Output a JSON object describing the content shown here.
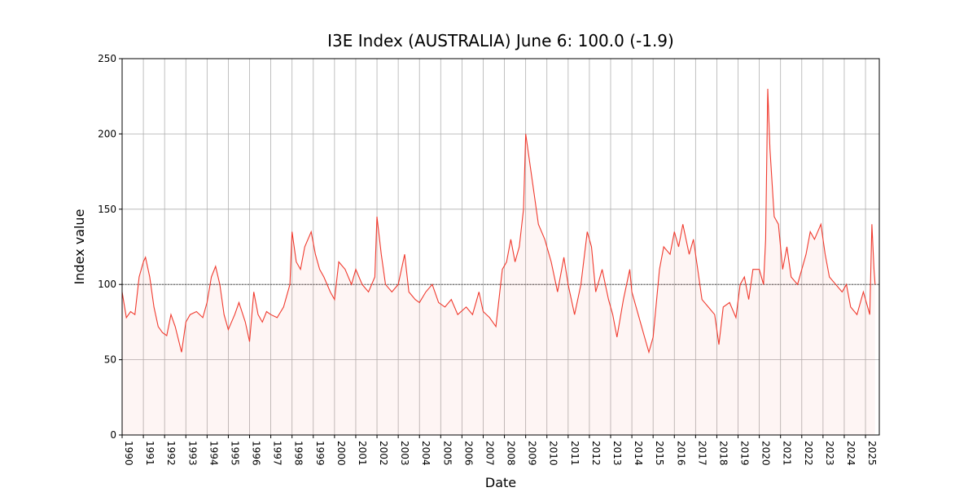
{
  "chart_data": {
    "type": "line",
    "title": "I3E Index (AUSTRALIA) June 6: 100.0 (-1.9)",
    "x_label": "Date",
    "y_label": "Index value",
    "xlim": [
      1990,
      2025.65
    ],
    "ylim": [
      0,
      250
    ],
    "xticks": [
      1990,
      1991,
      1992,
      1993,
      1994,
      1995,
      1996,
      1997,
      1998,
      1999,
      2000,
      2001,
      2002,
      2003,
      2004,
      2005,
      2006,
      2007,
      2008,
      2009,
      2010,
      2011,
      2012,
      2013,
      2014,
      2015,
      2016,
      2017,
      2018,
      2019,
      2020,
      2021,
      2022,
      2023,
      2024,
      2025
    ],
    "yticks": [
      0,
      50,
      100,
      150,
      200,
      250
    ],
    "grid": true,
    "reference": 100,
    "series": [
      {
        "color": "#f03a2e",
        "x": [
          1990.0,
          1990.2,
          1990.4,
          1990.6,
          1990.8,
          1991.0,
          1991.1,
          1991.3,
          1991.5,
          1991.7,
          1991.9,
          1992.1,
          1992.3,
          1992.5,
          1992.8,
          1993.0,
          1993.2,
          1993.5,
          1993.8,
          1994.0,
          1994.2,
          1994.4,
          1994.6,
          1994.8,
          1995.0,
          1995.3,
          1995.5,
          1995.8,
          1996.0,
          1996.2,
          1996.4,
          1996.6,
          1996.8,
          1997.0,
          1997.3,
          1997.6,
          1997.9,
          1998.0,
          1998.2,
          1998.4,
          1998.6,
          1998.9,
          1999.1,
          1999.3,
          1999.5,
          1999.8,
          2000.0,
          2000.2,
          2000.5,
          2000.8,
          2001.0,
          2001.3,
          2001.6,
          2001.9,
          2002.0,
          2002.2,
          2002.4,
          2002.7,
          2003.0,
          2003.3,
          2003.5,
          2003.8,
          2004.0,
          2004.3,
          2004.6,
          2004.9,
          2005.2,
          2005.5,
          2005.8,
          2006.2,
          2006.5,
          2006.8,
          2007.0,
          2007.3,
          2007.6,
          2007.9,
          2008.1,
          2008.3,
          2008.5,
          2008.7,
          2008.9,
          2009.0,
          2009.2,
          2009.4,
          2009.6,
          2009.9,
          2010.2,
          2010.5,
          2010.8,
          2011.0,
          2011.3,
          2011.6,
          2011.9,
          2012.1,
          2012.3,
          2012.6,
          2012.9,
          2013.1,
          2013.3,
          2013.6,
          2013.9,
          2014.0,
          2014.3,
          2014.6,
          2014.8,
          2015.0,
          2015.3,
          2015.5,
          2015.8,
          2016.0,
          2016.2,
          2016.4,
          2016.7,
          2016.9,
          2017.1,
          2017.3,
          2017.6,
          2017.9,
          2018.1,
          2018.3,
          2018.6,
          2018.9,
          2019.1,
          2019.3,
          2019.5,
          2019.7,
          2020.0,
          2020.2,
          2020.3,
          2020.4,
          2020.5,
          2020.7,
          2020.9,
          2021.1,
          2021.3,
          2021.5,
          2021.8,
          2022.0,
          2022.2,
          2022.4,
          2022.6,
          2022.9,
          2023.1,
          2023.3,
          2023.6,
          2023.9,
          2024.1,
          2024.3,
          2024.6,
          2024.9,
          2025.1,
          2025.2,
          2025.3,
          2025.4,
          2025.45
        ],
        "values": [
          95,
          78,
          82,
          80,
          105,
          115,
          118,
          105,
          85,
          72,
          68,
          66,
          80,
          72,
          55,
          75,
          80,
          82,
          78,
          88,
          105,
          112,
          100,
          80,
          70,
          80,
          88,
          75,
          62,
          95,
          80,
          75,
          82,
          80,
          78,
          85,
          100,
          135,
          115,
          110,
          125,
          135,
          120,
          110,
          105,
          95,
          90,
          115,
          110,
          100,
          110,
          100,
          95,
          105,
          145,
          120,
          100,
          95,
          100,
          120,
          95,
          90,
          88,
          95,
          100,
          88,
          85,
          90,
          80,
          85,
          80,
          95,
          82,
          78,
          72,
          110,
          115,
          130,
          115,
          125,
          150,
          200,
          180,
          160,
          140,
          130,
          115,
          95,
          118,
          100,
          80,
          100,
          135,
          125,
          95,
          110,
          90,
          80,
          65,
          90,
          110,
          95,
          80,
          65,
          55,
          65,
          110,
          125,
          120,
          135,
          125,
          140,
          120,
          130,
          110,
          90,
          85,
          80,
          60,
          85,
          88,
          78,
          100,
          105,
          90,
          110,
          110,
          100,
          130,
          230,
          190,
          145,
          140,
          110,
          125,
          105,
          100,
          110,
          120,
          135,
          130,
          140,
          120,
          105,
          100,
          95,
          100,
          85,
          80,
          95,
          85,
          80,
          140,
          110,
          100
        ]
      }
    ]
  }
}
